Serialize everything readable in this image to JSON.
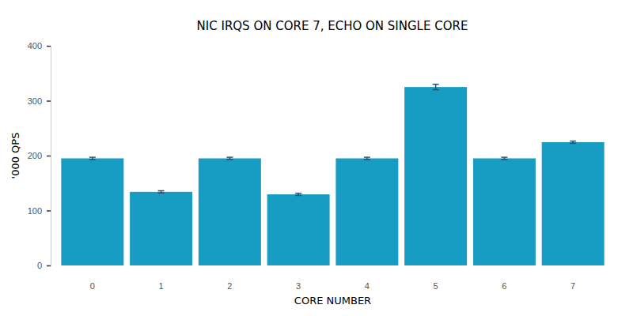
{
  "chart_data": {
    "type": "bar",
    "title": "NIC IRQS ON CORE 7, ECHO ON SINGLE CORE",
    "x_label": "CORE NUMBER",
    "y_label": "'000 QPS",
    "categories": [
      "0",
      "1",
      "2",
      "3",
      "4",
      "5",
      "6",
      "7"
    ],
    "values": [
      195,
      134,
      195,
      129.5,
      195,
      325,
      195,
      224.5
    ],
    "errors": [
      2,
      2,
      2,
      2,
      2,
      5,
      2,
      2
    ],
    "color": "#179cc3",
    "ylim": [
      0,
      400
    ],
    "yticks": [
      0,
      100,
      200,
      300,
      400
    ],
    "grid": false
  }
}
